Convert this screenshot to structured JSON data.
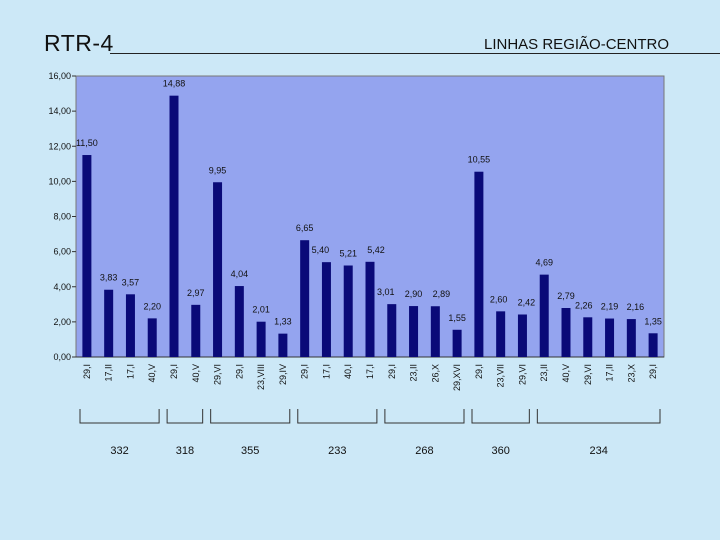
{
  "header": {
    "title": "RTR-4",
    "subtitle": "LINHAS REGIÃO-CENTRO"
  },
  "colors": {
    "background": "#cce8f7",
    "plot_area": "#94a4ef",
    "bar": "#0a0a78"
  },
  "chart_data": {
    "type": "bar",
    "title": "",
    "xlabel": "",
    "ylabel": "",
    "ylim": [
      0,
      16
    ],
    "yticks": [
      "0,00",
      "2,00",
      "4,00",
      "6,00",
      "8,00",
      "10,00",
      "12,00",
      "14,00",
      "16,00"
    ],
    "grid": false,
    "legend": "none",
    "categories": [
      "29,I",
      "17,II",
      "17,I",
      "40,V",
      "29,I",
      "40,V",
      "29,VI",
      "29,I",
      "23,VIII",
      "29,IV",
      "29,I",
      "17,I",
      "40,I",
      "17,I",
      "29,I",
      "23,II",
      "26,X",
      "29,XVI",
      "29,I",
      "23,VII",
      "29,VI",
      "23,II",
      "40,V",
      "29,VI",
      "17,II",
      "23,X",
      "29,I"
    ],
    "values": [
      11.5,
      3.83,
      3.57,
      2.2,
      14.88,
      2.97,
      9.95,
      4.04,
      2.01,
      1.33,
      6.65,
      5.4,
      5.21,
      5.42,
      3.01,
      2.9,
      2.89,
      1.55,
      10.55,
      2.6,
      2.42,
      4.69,
      2.79,
      2.26,
      2.19,
      2.16,
      1.35
    ],
    "value_labels": [
      "11,50",
      "3,83",
      "3,57",
      "2,20",
      "14,88",
      "2,97",
      "9,95",
      "4,04",
      "2,01",
      "1,33",
      "6,65",
      "5,40",
      "5,21",
      "5,42",
      "3,01",
      "2,90",
      "2,89",
      "1,55",
      "10,55",
      "2,60",
      "2,42",
      "4,69",
      "2,79",
      "2,26",
      "2,19",
      "2,16",
      "1,35"
    ],
    "groups": [
      {
        "label": "332",
        "start": 0,
        "end": 3
      },
      {
        "label": "318",
        "start": 4,
        "end": 5
      },
      {
        "label": "355",
        "start": 6,
        "end": 9
      },
      {
        "label": "233",
        "start": 10,
        "end": 13
      },
      {
        "label": "268",
        "start": 14,
        "end": 17
      },
      {
        "label": "360",
        "start": 18,
        "end": 20
      },
      {
        "label": "234",
        "start": 21,
        "end": 26
      }
    ]
  }
}
